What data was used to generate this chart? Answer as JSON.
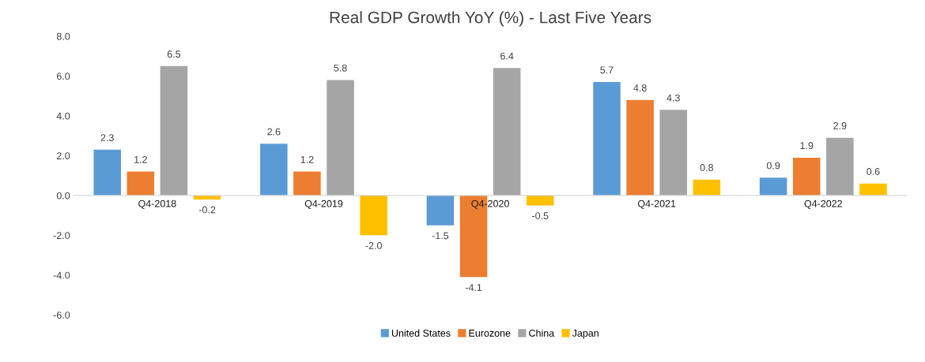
{
  "chart_data": {
    "type": "bar",
    "title": "Real GDP Growth YoY (%) - Last Five Years",
    "categories": [
      "Q4-2018",
      "Q4-2019",
      "Q4-2020",
      "Q4-2021",
      "Q4-2022"
    ],
    "series": [
      {
        "name": "United States",
        "color": "#5b9bd5",
        "values": [
          2.3,
          2.6,
          -1.5,
          5.7,
          0.9
        ],
        "value_labels": [
          "2.3",
          "2.6",
          "-1.5",
          "5.7",
          "0.9"
        ]
      },
      {
        "name": "Eurozone",
        "color": "#ed7d31",
        "values": [
          1.2,
          1.2,
          -4.1,
          4.8,
          1.9
        ],
        "value_labels": [
          "1.2",
          "1.2",
          "-4.1",
          "4.8",
          "1.9"
        ]
      },
      {
        "name": "China",
        "color": "#a5a5a5",
        "values": [
          6.5,
          5.8,
          6.4,
          4.3,
          2.9
        ],
        "value_labels": [
          "6.5",
          "5.8",
          "6.4",
          "4.3",
          "2.9"
        ]
      },
      {
        "name": "Japan",
        "color": "#ffc000",
        "values": [
          -0.2,
          -2.0,
          -0.5,
          0.8,
          0.6
        ],
        "value_labels": [
          "-0.2",
          "-2.0",
          "-0.5",
          "0.8",
          "0.6"
        ]
      }
    ],
    "ylim": [
      -6,
      8
    ],
    "yticks": [
      {
        "value": -6,
        "label": "-6.0"
      },
      {
        "value": -4,
        "label": "-4.0"
      },
      {
        "value": -2,
        "label": "-2.0"
      },
      {
        "value": 0,
        "label": "0.0"
      },
      {
        "value": 2,
        "label": "2.0"
      },
      {
        "value": 4,
        "label": "4.0"
      },
      {
        "value": 6,
        "label": "6.0"
      },
      {
        "value": 8,
        "label": "8.0"
      }
    ],
    "legend": "bottom",
    "grid": false
  }
}
